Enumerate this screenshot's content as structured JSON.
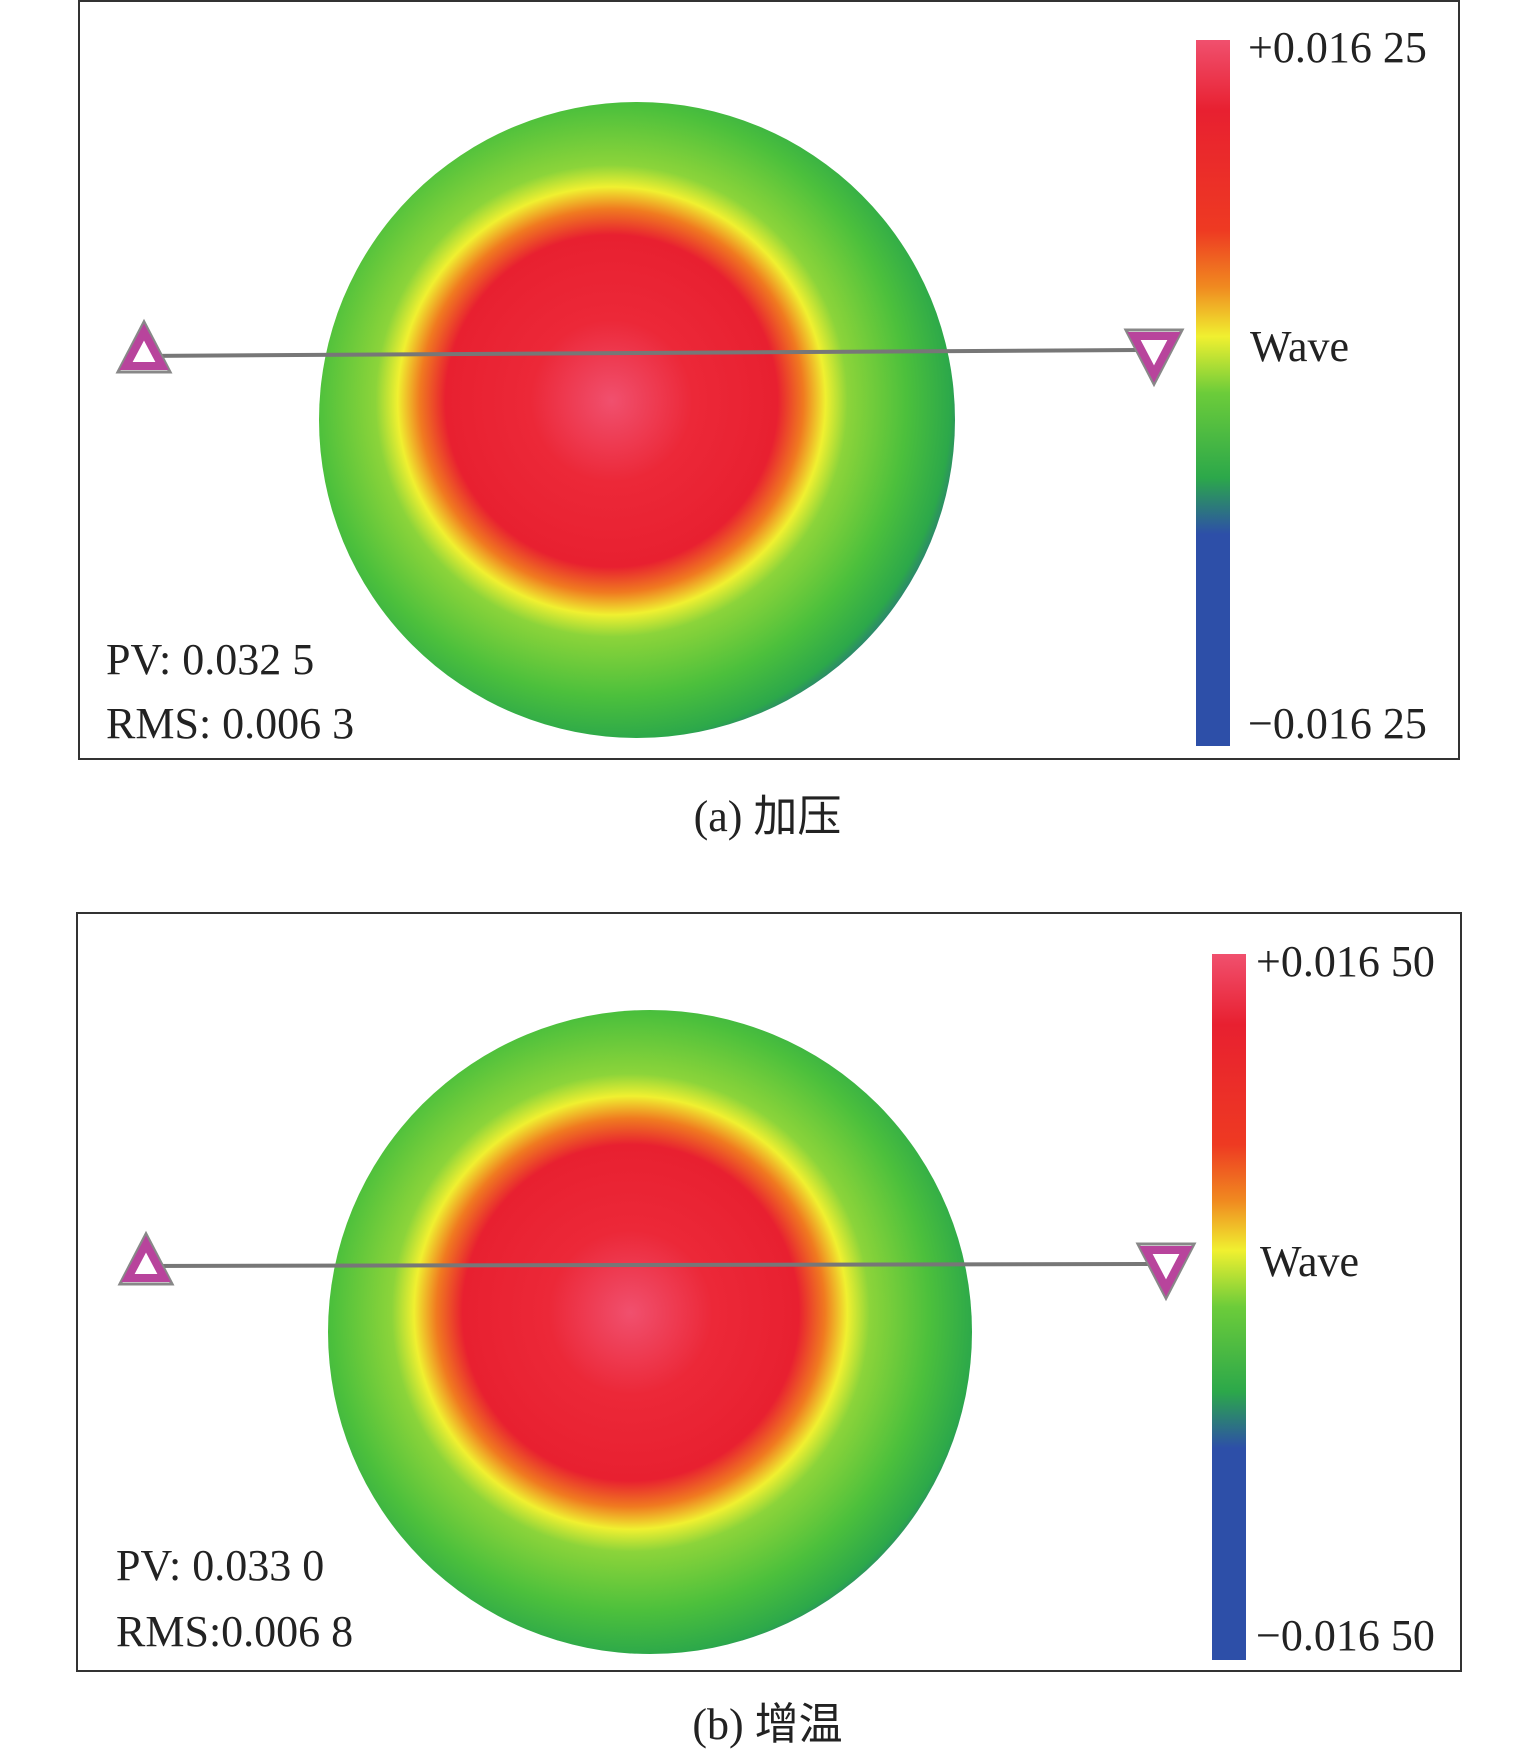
{
  "colors": {
    "pink": "#f0506e",
    "red": "#e82030",
    "orange": "#f07a20",
    "yellow": "#f0f030",
    "green": "#5ac83c",
    "green_dark": "#2ca84a",
    "blue": "#2d4fa8",
    "marker": "#b8449c",
    "line": "#777777"
  },
  "icons": {
    "left_marker": "triangle-up-icon",
    "right_marker": "triangle-down-icon"
  },
  "panels": [
    {
      "scale_max": "+0.016 25",
      "scale_label": "Wave",
      "scale_min": "−0.016 25",
      "pv": "PV: 0.032 5",
      "rms": "RMS: 0.006 3",
      "caption": "(a) 加压"
    },
    {
      "scale_max": "+0.016 50",
      "scale_label": "Wave",
      "scale_min": "−0.016 50",
      "pv": "PV: 0.033 0",
      "rms": "RMS:0.006 8",
      "caption": "(b) 增温"
    }
  ]
}
